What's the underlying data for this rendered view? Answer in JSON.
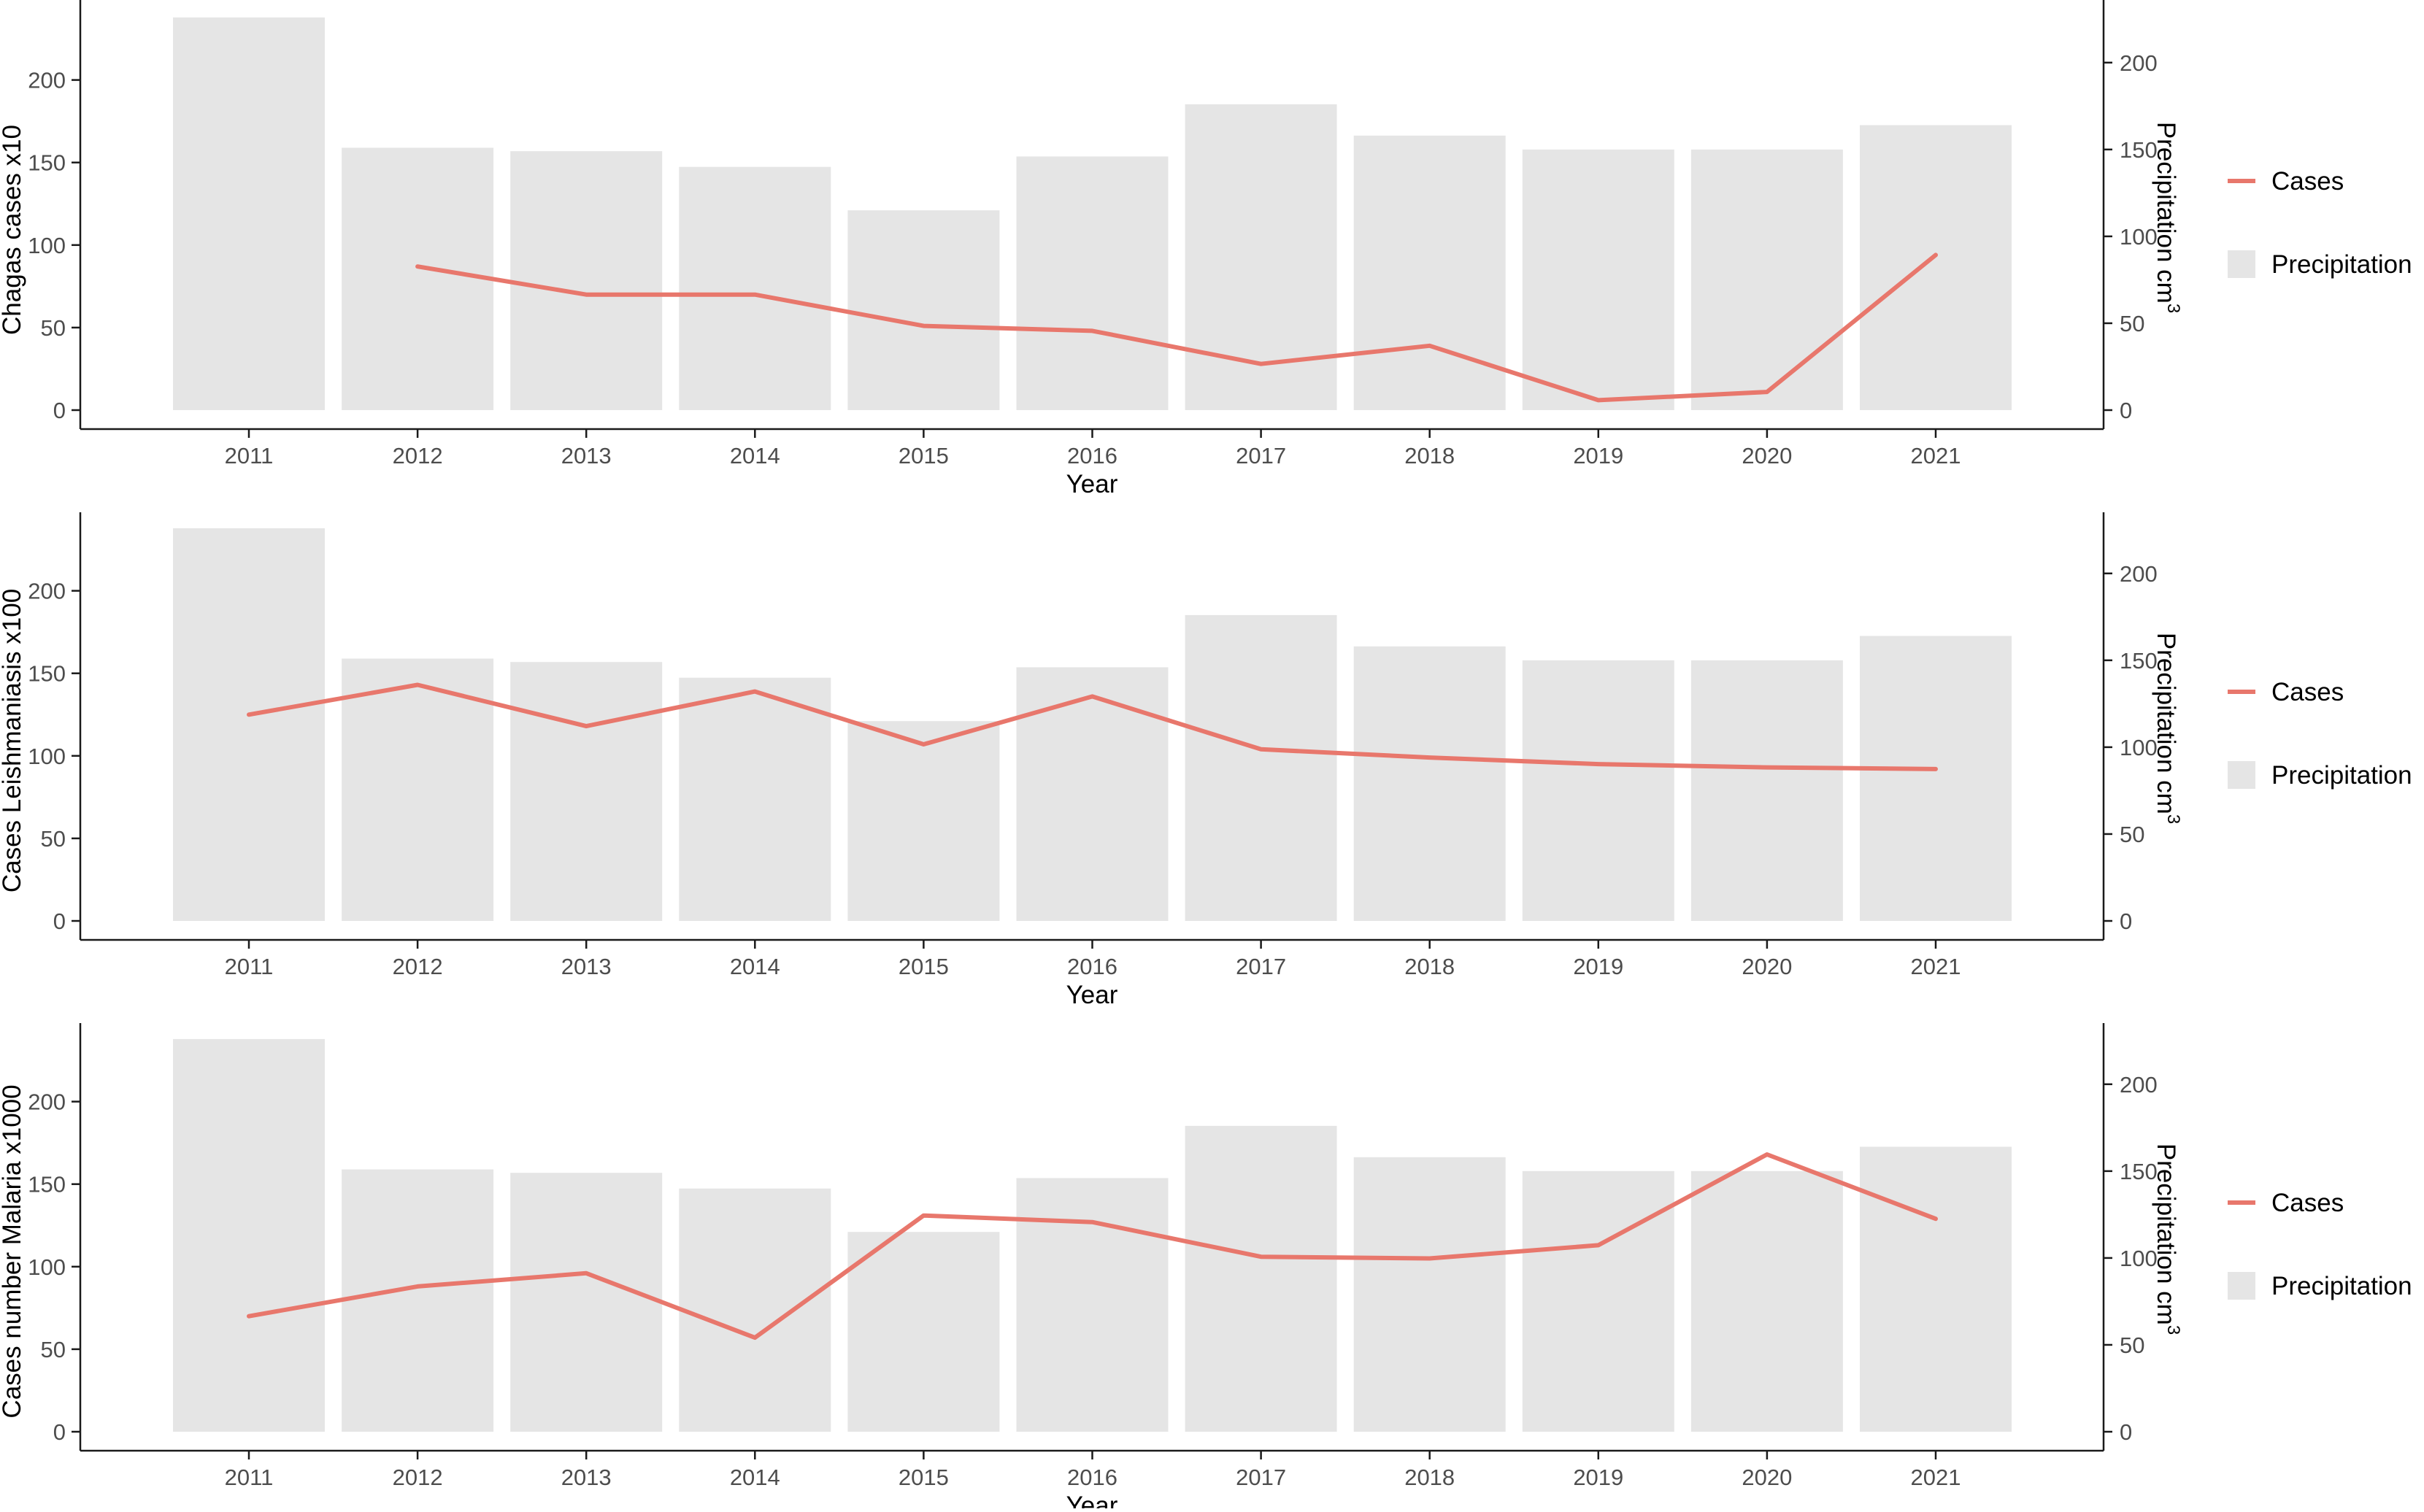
{
  "chart_data": [
    {
      "type": "bar",
      "x": [
        2011,
        2012,
        2013,
        2014,
        2015,
        2016,
        2017,
        2018,
        2019,
        2020,
        2021
      ],
      "series": [
        {
          "name": "Precipitation",
          "type": "bar",
          "axis": "right",
          "color": "#e5e5e5",
          "values": [
            226,
            151,
            149,
            140,
            115,
            146,
            176,
            158,
            150,
            150,
            164
          ]
        },
        {
          "name": "Cases",
          "type": "line",
          "axis": "left",
          "color": "#e8776c",
          "values": [
            null,
            87,
            70,
            70,
            51,
            48,
            28,
            39,
            6,
            11,
            94
          ]
        }
      ],
      "xlabel": "Year",
      "ylabel": "Chagas cases x10",
      "y2label": "Precipitation cm",
      "y2label_sup": "3",
      "ylim": [
        -5,
        237
      ],
      "y2lim": [
        -4.8,
        227
      ],
      "yticks": [
        0,
        50,
        100,
        150,
        200
      ],
      "y2ticks": [
        0,
        50,
        100,
        150,
        200
      ],
      "legend_position": "right",
      "grid": false
    },
    {
      "type": "bar",
      "x": [
        2011,
        2012,
        2013,
        2014,
        2015,
        2016,
        2017,
        2018,
        2019,
        2020,
        2021
      ],
      "series": [
        {
          "name": "Precipitation",
          "type": "bar",
          "axis": "right",
          "color": "#e5e5e5",
          "values": [
            226,
            151,
            149,
            140,
            115,
            146,
            176,
            158,
            150,
            150,
            164
          ]
        },
        {
          "name": "Cases",
          "type": "line",
          "axis": "left",
          "color": "#e8776c",
          "values": [
            125,
            143,
            118,
            139,
            107,
            136,
            104,
            99,
            95,
            93,
            92
          ]
        }
      ],
      "xlabel": "Year",
      "ylabel": "Cases Leishmaniasis x100",
      "y2label": "Precipitation cm",
      "y2label_sup": "3",
      "ylim": [
        -5,
        237
      ],
      "y2lim": [
        -4.8,
        227
      ],
      "yticks": [
        0,
        50,
        100,
        150,
        200
      ],
      "y2ticks": [
        0,
        50,
        100,
        150,
        200
      ],
      "legend_position": "right",
      "grid": false
    },
    {
      "type": "bar",
      "x": [
        2011,
        2012,
        2013,
        2014,
        2015,
        2016,
        2017,
        2018,
        2019,
        2020,
        2021
      ],
      "series": [
        {
          "name": "Precipitation",
          "type": "bar",
          "axis": "right",
          "color": "#e5e5e5",
          "values": [
            226,
            151,
            149,
            140,
            115,
            146,
            176,
            158,
            150,
            150,
            164
          ]
        },
        {
          "name": "Cases",
          "type": "line",
          "axis": "left",
          "color": "#e8776c",
          "values": [
            70,
            88,
            96,
            57,
            131,
            127,
            106,
            105,
            113,
            168,
            129
          ]
        }
      ],
      "xlabel": "Year",
      "ylabel": "Cases number Malaria x1000",
      "y2label": "Precipitation cm",
      "y2label_sup": "3",
      "ylim": [
        -5,
        237
      ],
      "y2lim": [
        -4.8,
        227
      ],
      "yticks": [
        0,
        50,
        100,
        150,
        200
      ],
      "y2ticks": [
        0,
        50,
        100,
        150,
        200
      ],
      "legend_position": "right",
      "grid": false
    }
  ]
}
